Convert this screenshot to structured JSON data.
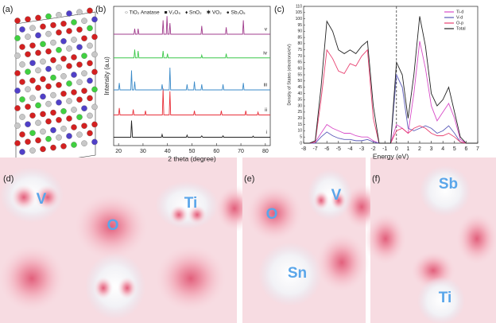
{
  "panels": {
    "a": {
      "label": "(a)"
    },
    "d": {
      "label": "(d)",
      "atoms": [
        "V",
        "O",
        "Ti"
      ]
    },
    "e": {
      "label": "(e)",
      "atoms": [
        "O",
        "V",
        "Sn"
      ]
    },
    "f": {
      "label": "(f)",
      "atoms": [
        "Sb",
        "Ti"
      ]
    }
  },
  "chart_data": [
    {
      "type": "line",
      "panel_label": "(b)",
      "xlabel": "2 theta (degree)",
      "ylabel": "Intensity (a.u)",
      "legend_items": [
        "○ TiO₂ Anatase",
        "■ V₂O₅",
        "♦ SnO₂",
        "✱ VO₂",
        "● Sb₂O₅"
      ],
      "xlim": [
        18,
        82
      ],
      "xticks": [
        20,
        30,
        40,
        50,
        60,
        70,
        80
      ],
      "ylim": [
        0,
        10
      ],
      "series": [
        {
          "name": "i",
          "color": "#222222",
          "x": [
            18,
            25,
            25.3,
            25.7,
            37.5,
            37.8,
            38.1,
            47.7,
            48,
            48.3,
            53.6,
            54,
            54.4,
            62.4,
            62.7,
            63,
            74.7,
            75,
            75.3,
            82
          ],
          "values": [
            0.6,
            0.6,
            1.8,
            0.6,
            0.6,
            0.8,
            0.6,
            0.6,
            0.75,
            0.6,
            0.6,
            0.7,
            0.6,
            0.6,
            0.7,
            0.6,
            0.6,
            0.68,
            0.6,
            0.6
          ]
        },
        {
          "name": "ii",
          "color": "#e8303a",
          "x": [
            18,
            20,
            20.3,
            20.6,
            25.7,
            26,
            26.3,
            30.7,
            31,
            31.3,
            37.9,
            38.2,
            38.5,
            40.7,
            41,
            41.3,
            50.7,
            51,
            51.3,
            61.7,
            62,
            62.3,
            71.7,
            72,
            72.3,
            76.7,
            77,
            77.3,
            82
          ],
          "values": [
            2.2,
            2.2,
            2.7,
            2.2,
            2.2,
            2.6,
            2.2,
            2.2,
            2.5,
            2.2,
            2.2,
            4.1,
            2.2,
            2.2,
            3.9,
            2.2,
            2.2,
            2.5,
            2.2,
            2.2,
            2.5,
            2.2,
            2.2,
            2.5,
            2.2,
            2.2,
            2.4,
            2.2,
            2.2
          ]
        },
        {
          "name": "iii",
          "color": "#3a8ac8",
          "x": [
            18,
            20,
            20.3,
            20.6,
            25,
            25.3,
            25.6,
            26.3,
            26.6,
            26.9,
            37.5,
            37.8,
            38.1,
            40.7,
            41,
            41.3,
            47.7,
            48,
            48.3,
            50.7,
            51,
            51.3,
            53.7,
            54,
            54.3,
            62.4,
            62.7,
            63,
            70.7,
            71,
            71.3,
            82
          ],
          "values": [
            4,
            4,
            4.5,
            4,
            4,
            5.4,
            4,
            4,
            4.6,
            4,
            4,
            4.4,
            4,
            4,
            5.6,
            4,
            4,
            4.4,
            4,
            4,
            4.6,
            4,
            4,
            4.4,
            4,
            4,
            4.4,
            4,
            4,
            4.5,
            4,
            4
          ]
        },
        {
          "name": "iv",
          "color": "#3cc84a",
          "x": [
            18,
            26.3,
            26.6,
            26.9,
            27.7,
            28,
            28.3,
            37.9,
            38.2,
            38.5,
            39.7,
            40,
            40.3,
            53.7,
            54,
            54.3,
            63.7,
            64,
            64.3,
            82
          ],
          "values": [
            6.3,
            6.3,
            6.9,
            6.3,
            6.3,
            6.8,
            6.3,
            6.3,
            6.8,
            6.3,
            6.3,
            6.6,
            6.3,
            6.3,
            6.5,
            6.3,
            6.3,
            6.6,
            6.3,
            6.3
          ]
        },
        {
          "name": "v",
          "color": "#a03c8c",
          "x": [
            18,
            26.3,
            26.6,
            26.9,
            27.7,
            28,
            28.3,
            37.9,
            38.2,
            38.5,
            39.5,
            39.8,
            40.1,
            40.7,
            41,
            41.3,
            53.7,
            54,
            54.3,
            63.7,
            64,
            64.3,
            70.7,
            71,
            71.3,
            82
          ],
          "values": [
            8,
            8,
            8.4,
            8,
            8,
            8.4,
            8,
            8,
            9,
            8,
            8,
            9.3,
            8,
            8,
            8.8,
            8,
            8,
            8.6,
            8,
            8,
            8.5,
            8,
            8,
            9,
            8,
            8
          ]
        }
      ]
    },
    {
      "type": "line",
      "panel_label": "(c)",
      "xlabel": "Energy (eV)",
      "ylabel": "Density of States (electrons/eV)",
      "legend": "upper right",
      "vline": 0,
      "x": [
        -8,
        -7.5,
        -7,
        -6.5,
        -6,
        -5.5,
        -5,
        -4.5,
        -4,
        -3.5,
        -3,
        -2.5,
        -2,
        -1.5,
        -1,
        -0.5,
        0,
        0.5,
        1,
        1.5,
        2,
        2.5,
        3,
        3.5,
        4,
        4.5,
        5,
        5.5,
        6,
        6.5,
        7
      ],
      "xlim": [
        -8,
        7
      ],
      "xticks": [
        -8,
        -7,
        -6,
        -5,
        -4,
        -3,
        -2,
        -1,
        0,
        1,
        2,
        3,
        4,
        5,
        6,
        7
      ],
      "ylim": [
        0,
        110
      ],
      "yticks": [
        0,
        5,
        10,
        15,
        20,
        25,
        30,
        35,
        40,
        45,
        50,
        55,
        60,
        65,
        70,
        75,
        80,
        85,
        90,
        95,
        100,
        105,
        110
      ],
      "series": [
        {
          "name": "Ti-d",
          "color": "#d84cc8",
          "values": [
            0,
            0,
            1,
            8,
            15,
            12,
            10,
            8,
            8,
            6,
            5,
            5,
            2,
            0,
            0,
            0,
            15,
            12,
            8,
            40,
            82,
            60,
            30,
            18,
            25,
            32,
            20,
            3,
            0,
            0,
            0
          ]
        },
        {
          "name": "V-d",
          "color": "#5a5ab8",
          "values": [
            0,
            0,
            0,
            5,
            9,
            6,
            4,
            3,
            3,
            2,
            2,
            3,
            1,
            0,
            0,
            0,
            55,
            45,
            12,
            10,
            12,
            14,
            12,
            8,
            10,
            14,
            8,
            1,
            0,
            0,
            0
          ]
        },
        {
          "name": "O-p",
          "color": "#e84070",
          "values": [
            0,
            0,
            1,
            35,
            75,
            68,
            58,
            56,
            64,
            62,
            70,
            75,
            20,
            0,
            0,
            0,
            10,
            12,
            8,
            12,
            14,
            12,
            8,
            6,
            6,
            8,
            5,
            1,
            0,
            0,
            0
          ]
        },
        {
          "name": "Total",
          "color": "#222222",
          "values": [
            0,
            0,
            2,
            45,
            98,
            90,
            75,
            72,
            75,
            72,
            78,
            82,
            30,
            0,
            0,
            0,
            65,
            55,
            20,
            55,
            102,
            78,
            40,
            30,
            35,
            45,
            25,
            5,
            0,
            0,
            0
          ]
        }
      ]
    }
  ]
}
